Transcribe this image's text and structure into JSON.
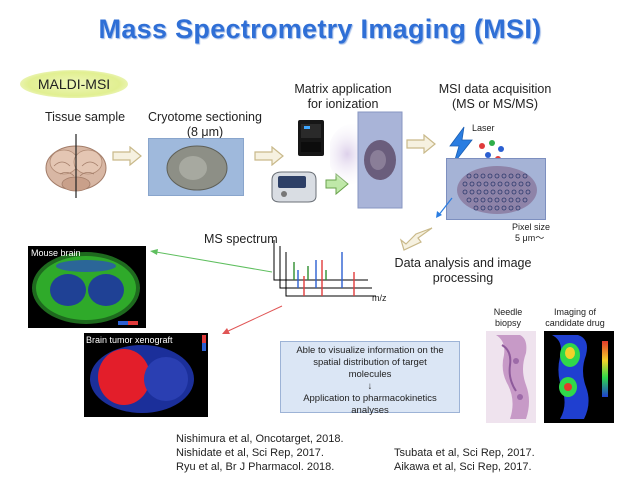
{
  "title": "Mass Spectrometry Imaging (MSI)",
  "badge": "MALDI-MSI",
  "steps": {
    "tissue": "Tissue sample",
    "cryotome_line1": "Cryotome sectioning",
    "cryotome_line2": "(8 μm)",
    "matrix_line1": "Matrix application",
    "matrix_line2": "for ionization",
    "acq_line1": "MSI data acquisition",
    "acq_line2": "(MS or MS/MS)",
    "laser": "Laser",
    "pixel_line1": "Pixel size",
    "pixel_line2": "5 μm〜",
    "analysis_line1": "Data analysis and image",
    "analysis_line2": "processing",
    "spectrum": "MS spectrum",
    "mz": "m/z"
  },
  "panels": {
    "mouse": "Mouse brain",
    "xenograft": "Brain tumor xenograft",
    "needle_line1": "Needle",
    "needle_line2": "biopsy",
    "drug_line1": "Imaging of",
    "drug_line2": "candidate drug"
  },
  "info": {
    "line1": "Able to visualize information on the",
    "line2": "spatial distribution of target",
    "line3": "molecules",
    "arrow": "↓",
    "line4": "Application to pharmacokinetics",
    "line5": "analyses"
  },
  "references": {
    "r1": "Nishimura et al, Oncotarget, 2018.",
    "r2": "Nishidate et al, Sci Rep, 2017.",
    "r3": "Ryu et al, Br J Pharmacol. 2018.",
    "r4": "Tsubata et al, Sci Rep, 2017.",
    "r5": "Aikawa et al, Sci Rep, 2017."
  },
  "colors": {
    "title": "#2f6fd6",
    "badge": "#e1ef91",
    "flow_arrow": "#c9b98a",
    "green_arrow": "#5fbf5f",
    "red_arrow": "#e05555"
  },
  "icons": [
    "brain-icon",
    "laser-bolt-icon",
    "ion-droplets-icon",
    "sprayer-icon",
    "spotter-icon",
    "spectrum-icon"
  ]
}
